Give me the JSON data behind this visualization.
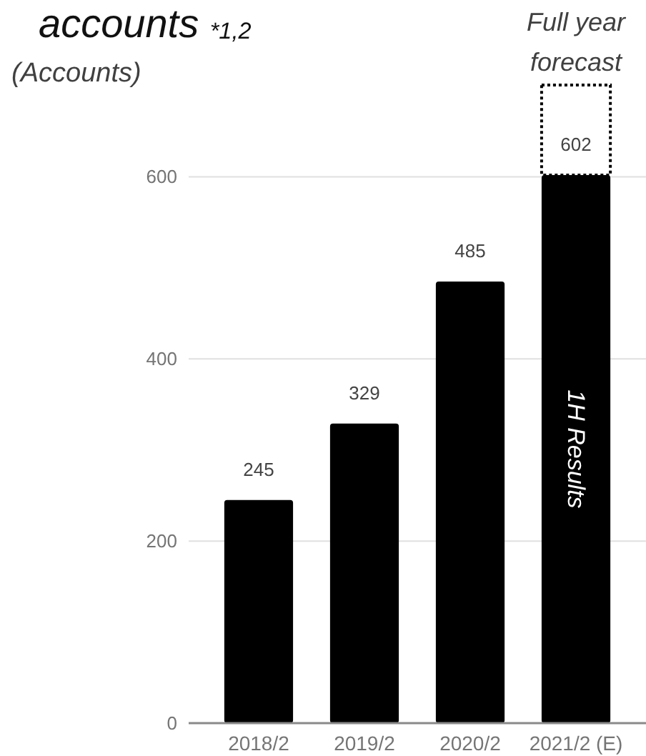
{
  "chart_data": {
    "type": "bar",
    "title": "accounts $_{*1,2}$",
    "ylabel": "(Accounts)",
    "categories": [
      "2018/2",
      "2019/2",
      "2020/2",
      "2021/2 (E)"
    ],
    "values": [
      245,
      329,
      485,
      602
    ],
    "color": "#000000",
    "ylim": [
      0,
      700
    ],
    "yticks": [
      0,
      200,
      400,
      600
    ],
    "grid": "y",
    "data_labels": true,
    "annotations": [
      "Full year forecast",
      "1H Results"
    ]
  }
}
